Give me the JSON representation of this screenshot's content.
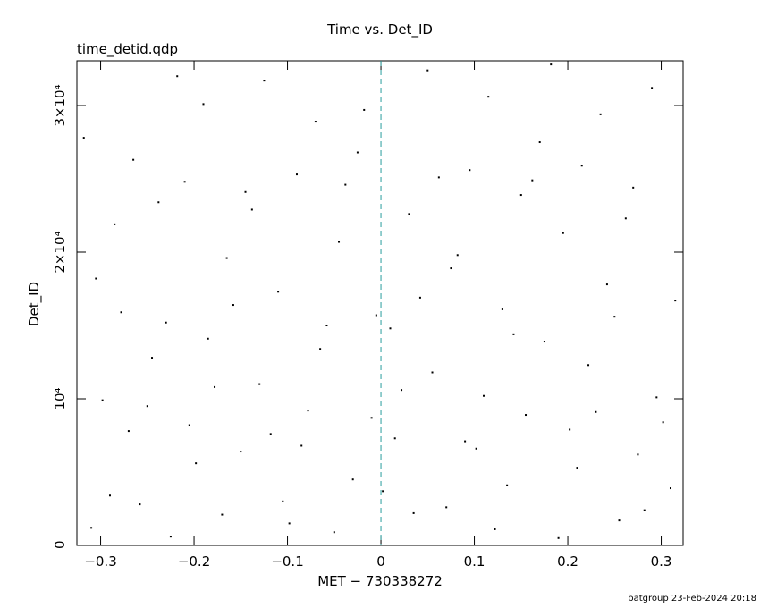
{
  "chart_data": {
    "type": "scatter",
    "title": "Time vs. Det_ID",
    "subtitle": "time_detid.qdp",
    "x_label": "MET − 730338272",
    "y_label": "Det_ID",
    "footer": "batgroup 23-Feb-2024 20:18",
    "color": "#000000",
    "vline": 0,
    "vline_color": "#2a9d9d",
    "xlim": [
      -0.3254,
      0.3234
    ],
    "ylim": [
      0,
      33050
    ],
    "xticks": [
      {
        "value": -0.3,
        "label": "−0.3"
      },
      {
        "value": -0.2,
        "label": "−0.2"
      },
      {
        "value": -0.1,
        "label": "−0.1"
      },
      0,
      0.1,
      0.2,
      0.3
    ],
    "yticks": [
      0,
      {
        "value": 10000,
        "label": "10⁴"
      },
      {
        "value": 20000,
        "label": "2×10⁴"
      },
      {
        "value": 30000,
        "label": "3×10⁴"
      }
    ],
    "x": [
      -0.31,
      -0.29,
      -0.27,
      -0.25,
      -0.23,
      -0.21,
      -0.19,
      -0.17,
      -0.15,
      -0.13,
      -0.11,
      -0.09,
      -0.07,
      -0.05,
      -0.03,
      -0.01,
      0.01,
      0.03,
      0.05,
      0.07,
      0.09,
      0.11,
      0.13,
      0.15,
      0.17,
      0.19,
      0.21,
      0.23,
      0.25,
      0.27,
      0.29,
      0.31,
      -0.305,
      -0.285,
      -0.265,
      -0.245,
      -0.225,
      -0.205,
      -0.185,
      -0.165,
      -0.145,
      -0.125,
      -0.105,
      -0.085,
      -0.065,
      -0.045,
      -0.025,
      -0.005,
      0.015,
      0.035,
      0.055,
      0.075,
      0.095,
      0.115,
      0.135,
      0.155,
      0.175,
      0.195,
      0.215,
      0.235,
      0.255,
      0.275,
      0.295,
      0.315,
      -0.318,
      -0.298,
      -0.278,
      -0.258,
      -0.238,
      -0.218,
      -0.198,
      -0.178,
      -0.158,
      -0.138,
      -0.118,
      -0.098,
      -0.078,
      -0.058,
      -0.038,
      -0.018,
      0.002,
      0.022,
      0.042,
      0.062,
      0.082,
      0.102,
      0.122,
      0.142,
      0.162,
      0.182,
      0.202,
      0.222,
      0.242,
      0.262,
      0.282,
      0.302
    ],
    "values": [
      1200,
      3400,
      7800,
      9500,
      15200,
      24800,
      30100,
      2100,
      6400,
      11000,
      17300,
      25300,
      28900,
      900,
      4500,
      8700,
      14800,
      22600,
      32400,
      2600,
      7100,
      10200,
      16100,
      23900,
      27500,
      500,
      5300,
      9100,
      15600,
      24400,
      31200,
      3900,
      18200,
      21900,
      26300,
      12800,
      600,
      8200,
      14100,
      19600,
      24100,
      31700,
      3000,
      6800,
      13400,
      20700,
      26800,
      15700,
      7300,
      2200,
      11800,
      18900,
      25600,
      30600,
      4100,
      8900,
      13900,
      21300,
      25900,
      29400,
      1700,
      6200,
      10100,
      16700,
      27800,
      9900,
      15900,
      2800,
      23400,
      32000,
      5600,
      10800,
      16400,
      22900,
      7600,
      1500,
      9200,
      15000,
      24600,
      29700,
      3700,
      10600,
      16900,
      25100,
      19800,
      6600,
      1100,
      14400,
      24900,
      32800,
      7900,
      12300,
      17800,
      22300,
      2400,
      8400
    ]
  }
}
